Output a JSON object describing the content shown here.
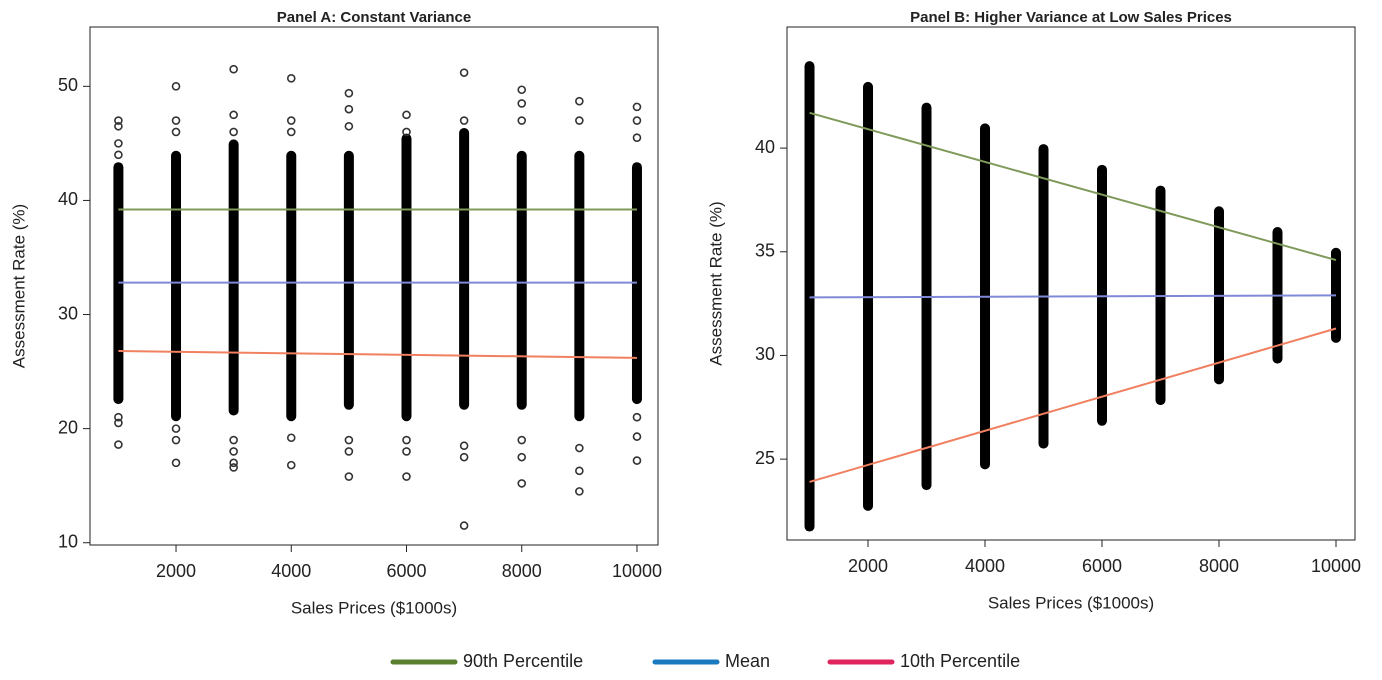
{
  "chart_data": [
    {
      "type": "scatter",
      "title": "Panel A: Constant Variance",
      "x_label": "Sales Prices ($1000s)",
      "y_label": "Assessment Rate (%)",
      "xlim": [
        507,
        10365
      ],
      "ylim": [
        9.8,
        55.2
      ],
      "xticks": [
        2000,
        4000,
        6000,
        8000,
        10000
      ],
      "yticks": [
        10,
        20,
        30,
        40,
        50
      ],
      "bands": {
        "x": [
          1000,
          2000,
          3000,
          4000,
          5000,
          6000,
          7000,
          8000,
          9000,
          10000
        ],
        "low": [
          22.5,
          21,
          21.5,
          21,
          22,
          21,
          22,
          22,
          21,
          22.5
        ],
        "high": [
          43,
          44,
          45,
          44,
          44,
          45.5,
          46,
          44,
          44,
          43
        ]
      },
      "outliers": {
        "x": [
          1000,
          1000,
          1000,
          1000,
          1000,
          1000,
          1000,
          2000,
          2000,
          2000,
          2000,
          2000,
          2000,
          3000,
          3000,
          3000,
          3000,
          3000,
          3000,
          3000,
          4000,
          4000,
          4000,
          4000,
          4000,
          5000,
          5000,
          5000,
          5000,
          5000,
          5000,
          6000,
          6000,
          6000,
          6000,
          6000,
          7000,
          7000,
          7000,
          7000,
          7000,
          8000,
          8000,
          8000,
          8000,
          8000,
          8000,
          9000,
          9000,
          9000,
          9000,
          9000,
          10000,
          10000,
          10000,
          10000,
          10000,
          10000
        ],
        "y": [
          18.6,
          20.5,
          21,
          44,
          45,
          46.5,
          47,
          17,
          19,
          20,
          50,
          47,
          46,
          16.6,
          17,
          18,
          19,
          51.5,
          47.5,
          46,
          16.8,
          19.2,
          50.7,
          47,
          46,
          15.8,
          18,
          19,
          49.4,
          48,
          46.5,
          15.8,
          18,
          19,
          47.5,
          46,
          11.5,
          17.5,
          18.5,
          51.2,
          47,
          15.2,
          17.5,
          19,
          49.7,
          48.5,
          47,
          14.5,
          16.3,
          18.3,
          48.7,
          47,
          17.2,
          19.3,
          21,
          48.2,
          47,
          45.5
        ]
      },
      "series": [
        {
          "color": "#7f9a5a",
          "x": [
            1000,
            10000
          ],
          "values": [
            39.2,
            39.2
          ]
        },
        {
          "color": "#8088d8",
          "x": [
            1000,
            10000
          ],
          "values": [
            32.8,
            32.8
          ]
        },
        {
          "color": "#f08060",
          "x": [
            1000,
            10000
          ],
          "values": [
            26.8,
            26.2
          ]
        }
      ]
    },
    {
      "type": "scatter",
      "title": "Panel B: Higher Variance at Low Sales Prices",
      "x_label": "Sales Prices ($1000s)",
      "y_label": "Assessment Rate (%)",
      "xlim": [
        615,
        10325
      ],
      "ylim": [
        21.1,
        45.84
      ],
      "xticks": [
        2000,
        4000,
        6000,
        8000,
        10000
      ],
      "yticks": [
        25,
        30,
        35,
        40
      ],
      "bands": {
        "x": [
          1000,
          2000,
          3000,
          4000,
          5000,
          6000,
          7000,
          8000,
          9000,
          10000
        ],
        "low": [
          21.7,
          22.7,
          23.7,
          24.7,
          25.7,
          26.8,
          27.8,
          28.8,
          29.8,
          30.8
        ],
        "high": [
          44,
          43,
          42,
          41,
          40,
          39,
          38,
          37,
          36,
          35
        ]
      },
      "outliers": {
        "x": [],
        "y": []
      },
      "series": [
        {
          "color": "#7f9a5a",
          "x": [
            1000,
            10000
          ],
          "values": [
            41.7,
            34.6
          ]
        },
        {
          "color": "#8088d8",
          "x": [
            1000,
            10000
          ],
          "values": [
            32.8,
            32.9
          ]
        },
        {
          "color": "#f08060",
          "x": [
            1000,
            10000
          ],
          "values": [
            23.9,
            31.3
          ]
        }
      ]
    }
  ],
  "legend": [
    {
      "name": "90th Percentile",
      "color": "#5a7f2f"
    },
    {
      "name": "Mean",
      "color": "#1a7abf"
    },
    {
      "name": "10th Percentile",
      "color": "#e0245e"
    }
  ]
}
